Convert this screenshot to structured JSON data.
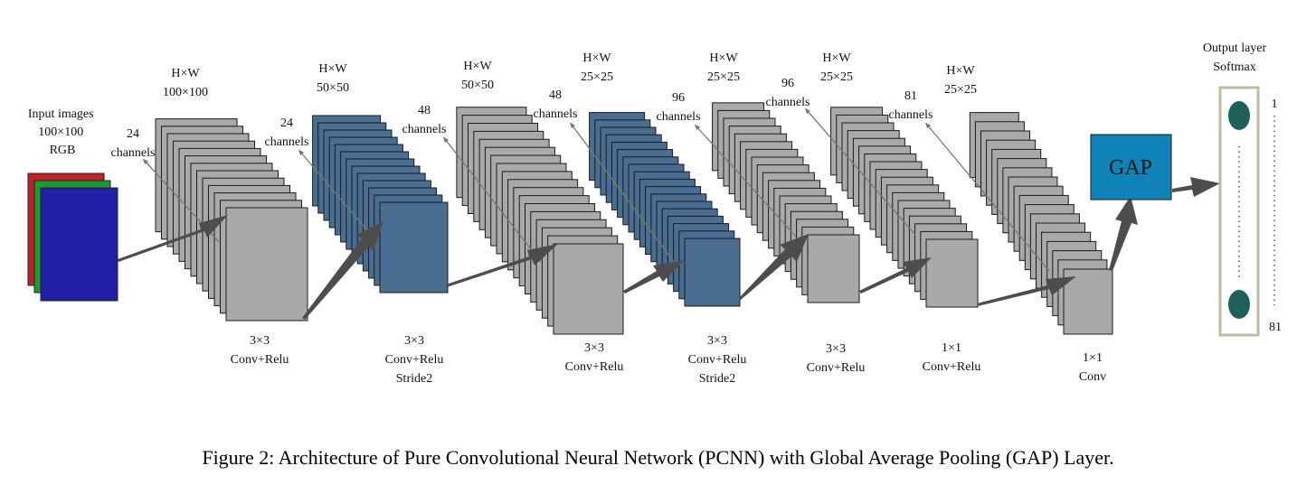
{
  "input": {
    "label_lines": [
      "Input images",
      "100×100",
      "RGB"
    ],
    "colors": [
      "#c0202a",
      "#1f9a2e",
      "#1f1faa"
    ]
  },
  "layers": [
    {
      "id": "conv1",
      "dims_lines": [
        "H×W",
        "100×100"
      ],
      "channels_lines": [
        "24",
        "channels"
      ],
      "op_lines": [
        "3×3",
        "Conv+Relu"
      ],
      "color": "#a9a9a9"
    },
    {
      "id": "conv2",
      "dims_lines": [
        "H×W",
        "50×50"
      ],
      "channels_lines": [
        "24",
        "channels"
      ],
      "op_lines": [
        "3×3",
        "Conv+Relu",
        "Stride2"
      ],
      "color": "#4a6e92"
    },
    {
      "id": "conv3",
      "dims_lines": [
        "H×W",
        "50×50"
      ],
      "channels_lines": [
        "48",
        "channels"
      ],
      "op_lines": [
        "3×3",
        "Conv+Relu"
      ],
      "color": "#a9a9a9"
    },
    {
      "id": "conv4",
      "dims_lines": [
        "H×W",
        "25×25"
      ],
      "channels_lines": [
        "48",
        "channels"
      ],
      "op_lines": [
        "3×3",
        "Conv+Relu",
        "Stride2"
      ],
      "color": "#4a6e92"
    },
    {
      "id": "conv5",
      "dims_lines": [
        "H×W",
        "25×25"
      ],
      "channels_lines": [
        "96",
        "channels"
      ],
      "op_lines": [
        "3×3",
        "Conv+Relu"
      ],
      "color": "#a9a9a9"
    },
    {
      "id": "conv6",
      "dims_lines": [
        "H×W",
        "25×25"
      ],
      "channels_lines": [
        "96",
        "channels"
      ],
      "op_lines": [
        "1×1",
        "Conv+Relu"
      ],
      "color": "#a9a9a9"
    },
    {
      "id": "conv7",
      "dims_lines": [
        "H×W",
        "25×25"
      ],
      "channels_lines": [
        "81",
        "channels"
      ],
      "op_lines": [
        "1×1",
        "Conv"
      ],
      "color": "#a9a9a9"
    }
  ],
  "gap": {
    "label": "GAP",
    "color": "#0f83b8"
  },
  "output": {
    "title_lines": [
      "Output layer",
      "Softmax"
    ],
    "index_top": "1",
    "index_bottom": "81",
    "node_color": "#1e5f5c",
    "border_color": "#b9bd9c"
  },
  "caption": "Figure 2: Architecture of Pure Convolutional Neural Network (PCNN) with Global Average Pooling (GAP) Layer."
}
